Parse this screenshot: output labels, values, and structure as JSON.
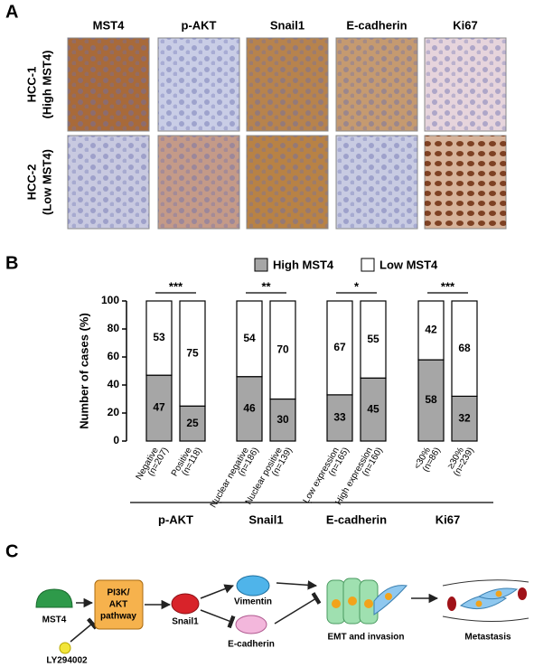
{
  "panel_labels": [
    "A",
    "B",
    "C"
  ],
  "panel_a": {
    "columns": [
      "MST4",
      "p-AKT",
      "Snail1",
      "E-cadherin",
      "Ki67"
    ],
    "rows": [
      {
        "name": "HCC-1",
        "group": "(High MST4)"
      },
      {
        "name": "HCC-2",
        "group": "(Low MST4)"
      }
    ]
  },
  "chart_data": {
    "type": "bar",
    "stacked": true,
    "y_label": "Number of cases (%)",
    "categories": [
      "Negative",
      "Positive",
      "Nuclear negative",
      "Nuclear positive",
      "Low expression",
      "High expression",
      "<30%",
      "≥30%"
    ],
    "category_notes": [
      "(n=207)",
      "(n=118)",
      "(n=186)",
      "(n=139)",
      "(n=165)",
      "(n=160)",
      "(n=86)",
      "(n=239)"
    ],
    "groups": [
      {
        "name": "p-AKT",
        "significance": "***"
      },
      {
        "name": "Snail1",
        "significance": "**"
      },
      {
        "name": "E-cadherin",
        "significance": "*"
      },
      {
        "name": "Ki67",
        "significance": "***"
      }
    ],
    "series": [
      {
        "name": "High MST4",
        "color": "#a6a6a6",
        "values": [
          47,
          25,
          46,
          30,
          33,
          45,
          58,
          32
        ]
      },
      {
        "name": "Low MST4",
        "color": "#ffffff",
        "values": [
          53,
          75,
          54,
          70,
          67,
          55,
          42,
          68
        ]
      }
    ],
    "ylim": [
      0,
      100
    ],
    "yticks": [
      0,
      20,
      40,
      60,
      80,
      100
    ],
    "legend": "top"
  },
  "panel_c": {
    "mst4": "MST4",
    "inhibitor": "LY294002",
    "pathway": [
      "PI3K/",
      "AKT",
      "pathway"
    ],
    "snail1": "Snail1",
    "vimentin": "Vimentin",
    "ecadherin": "E-cadherin",
    "emt": "EMT and invasion",
    "metastasis": "Metastasis"
  }
}
